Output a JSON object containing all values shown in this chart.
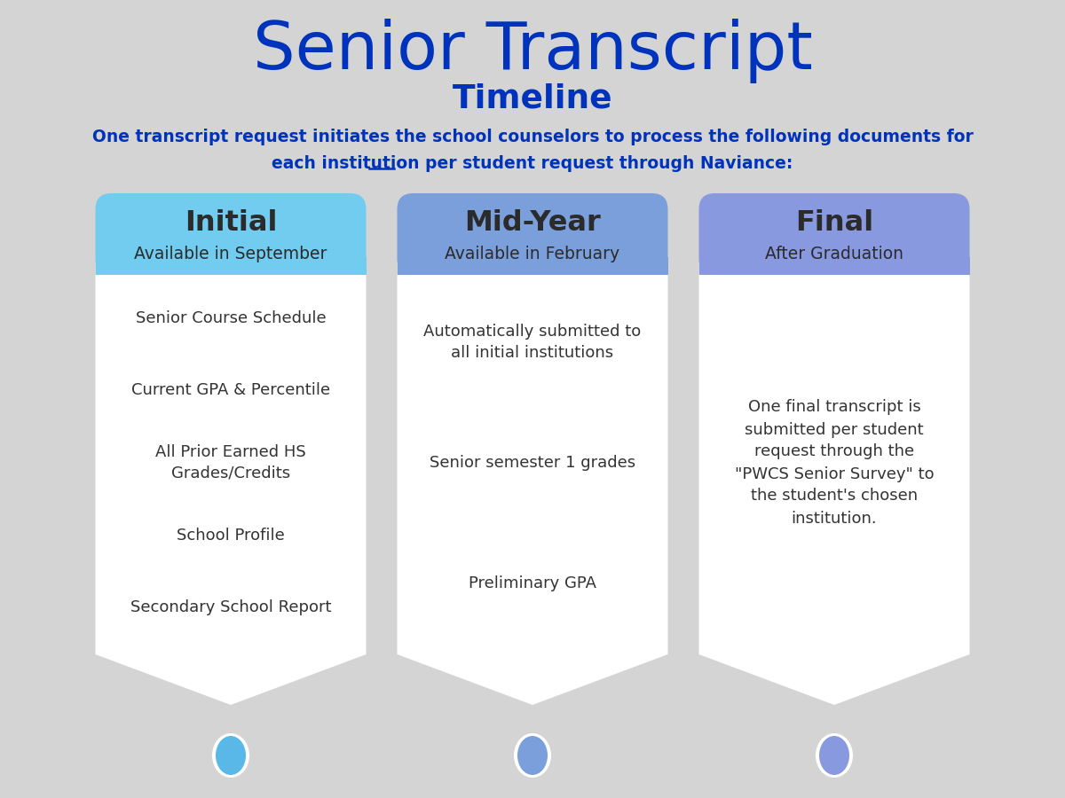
{
  "background_color": "#d4d4d4",
  "title_line1": "Senior Transcript",
  "title_line2": "Timeline",
  "subtitle_line1": "One transcript request initiates the school counselors to process the following documents for",
  "subtitle_line2": "each institution per student request through Naviance:",
  "title_color": "#0033bb",
  "subtitle_color": "#0033bb",
  "columns": [
    {
      "header": "Initial",
      "subheader": "Available in September",
      "header_bg": "#72ccf0",
      "body_bg": "#ffffff",
      "circle_color": "#5ab8e8",
      "items": [
        "Senior Course Schedule",
        "Current GPA & Percentile",
        "All Prior Earned HS\nGrades/Credits",
        "School Profile",
        "Secondary School Report"
      ]
    },
    {
      "header": "Mid-Year",
      "subheader": "Available in February",
      "header_bg": "#7a9fda",
      "body_bg": "#ffffff",
      "circle_color": "#7a9fda",
      "items": [
        "Automatically submitted to\nall initial institutions",
        "Senior semester 1 grades",
        "Preliminary GPA"
      ]
    },
    {
      "header": "Final",
      "subheader": "After Graduation",
      "header_bg": "#8899e0",
      "body_bg": "#ffffff",
      "circle_color": "#8899e0",
      "items": [
        "One final transcript is\nsubmitted per student\nrequest through the\n\"PWCS Senior Survey\" to\nthe student's chosen\ninstitution."
      ]
    }
  ]
}
